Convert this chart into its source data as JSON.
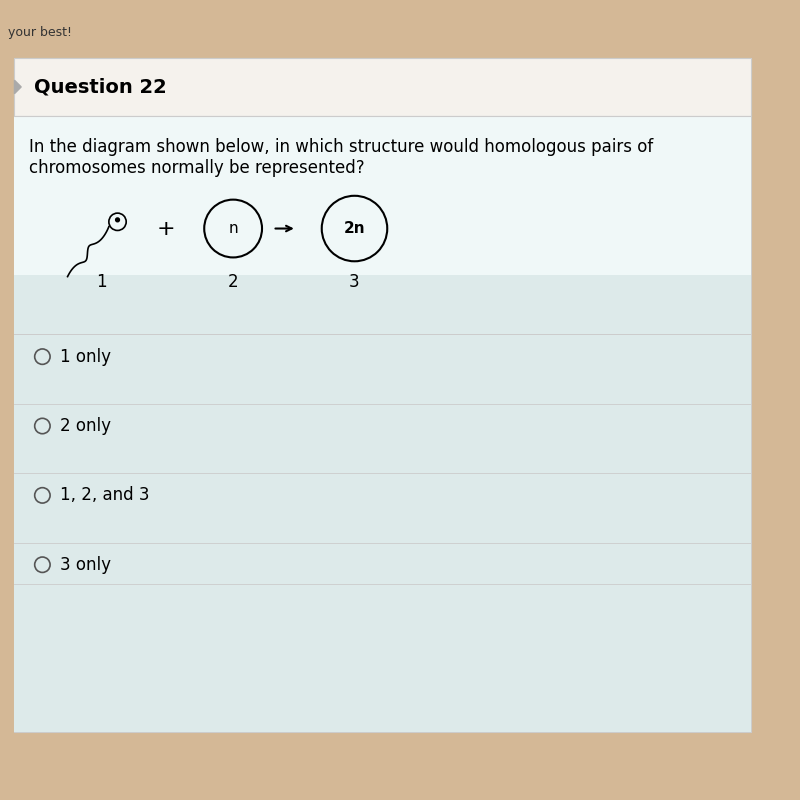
{
  "bg_top_color": "#d4b896",
  "bg_card": "#f8f8f8",
  "bg_header": "#f5f2ed",
  "bg_content": "#ddeaea",
  "bg_question_area": "#f0f8f8",
  "question_number": "Question 22",
  "question_text_line1": "In the diagram shown below, in which structure would homologous pairs of",
  "question_text_line2": "chromosomes normally be represented?",
  "options": [
    "1 only",
    "2 only",
    "1, 2, and 3",
    "3 only"
  ],
  "diagram": {
    "sperm_label": "1",
    "circle1_label": "n",
    "circle1_number": "2",
    "circle2_label": "2n",
    "circle2_number": "3",
    "plus_sign": "+"
  },
  "divider_color": "#cccccc",
  "text_color": "#000000",
  "top_bar_text": "your best!"
}
